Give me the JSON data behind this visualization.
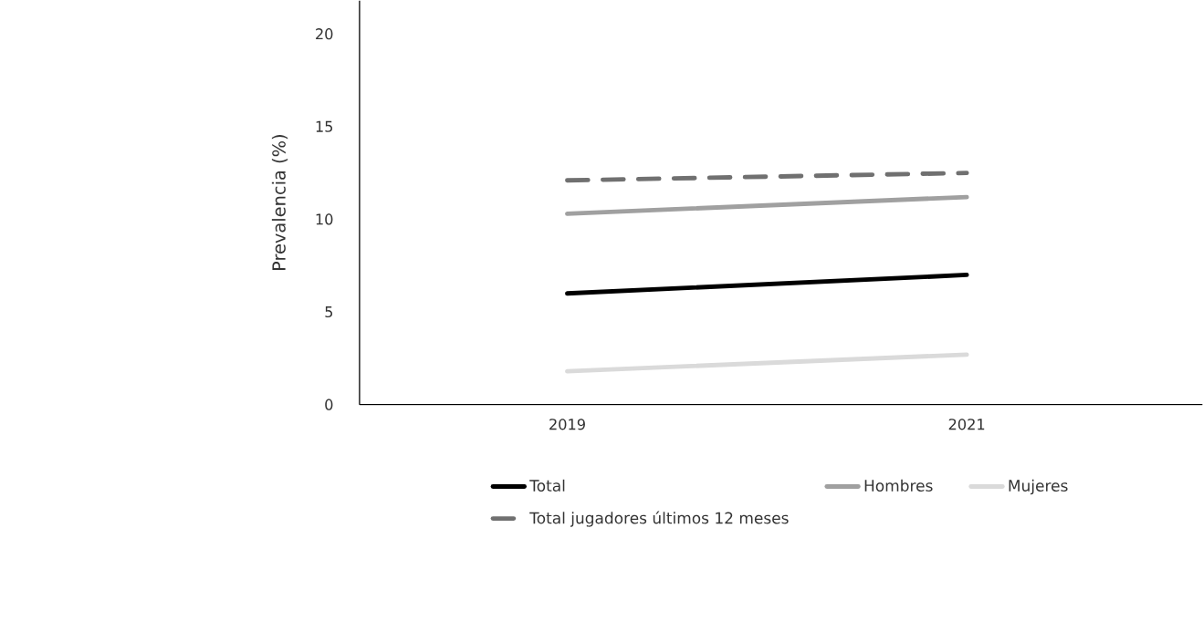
{
  "chart_data": {
    "type": "line",
    "ylabel": "Prevalencia (%)",
    "categories": [
      "2019",
      "2021"
    ],
    "series": [
      {
        "name": "Total",
        "color": "#000000",
        "values": [
          6.0,
          7.0
        ]
      },
      {
        "name": "Hombres",
        "color": "#a0a0a0",
        "values": [
          10.3,
          11.2
        ]
      },
      {
        "name": "Mujeres",
        "color": "#dadada",
        "values": [
          1.8,
          2.7
        ]
      },
      {
        "name": "Total jugadores últimos 12 meses",
        "color": "#707070",
        "values": [
          12.1,
          12.5
        ],
        "line_style": "dashed"
      }
    ],
    "ylim": [
      0,
      21.8
    ],
    "yticks": [
      0,
      5,
      10,
      15,
      20
    ],
    "grid": false,
    "legend": "bottom",
    "marker": "none",
    "line_style": "solid"
  }
}
